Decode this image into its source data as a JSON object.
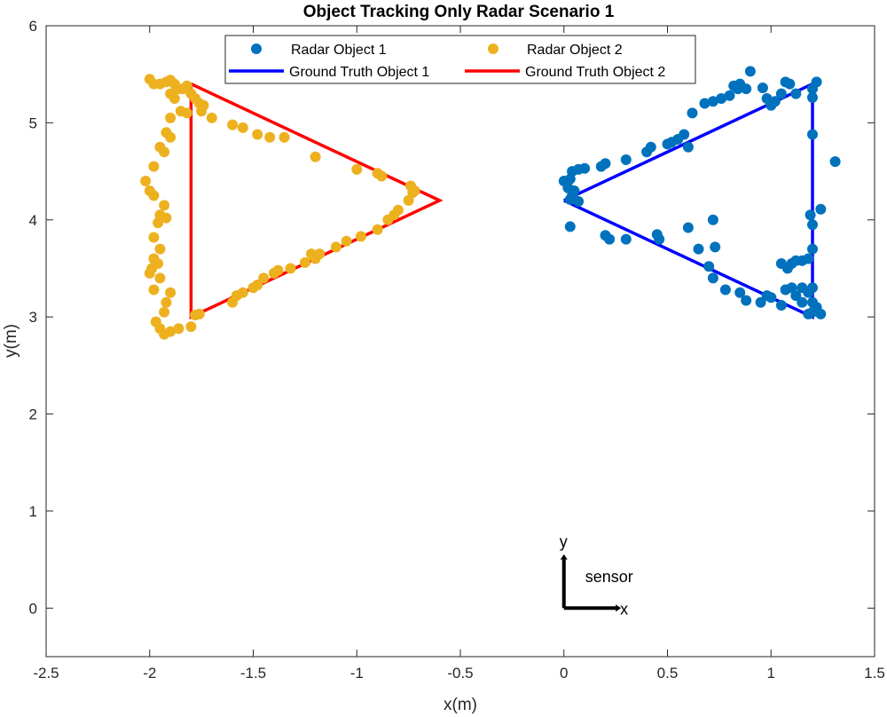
{
  "chart_data": {
    "type": "scatter",
    "title": "Object Tracking Only Radar Scenario 1",
    "xlabel": "x(m)",
    "ylabel": "y(m)",
    "xlim": [
      -2.5,
      1.5
    ],
    "ylim": [
      -0.5,
      6
    ],
    "xticks": [
      -2.5,
      -2,
      -1.5,
      -1,
      -0.5,
      0,
      0.5,
      1,
      1.5
    ],
    "xtick_labels": [
      "-2.5",
      "-2",
      "-1.5",
      "-1",
      "-0.5",
      "0",
      "0.5",
      "1",
      "1.5"
    ],
    "yticks": [
      0,
      1,
      2,
      3,
      4,
      5,
      6
    ],
    "ytick_labels": [
      "0",
      "1",
      "2",
      "3",
      "4",
      "5",
      "6"
    ],
    "grid": false,
    "legend_position": "top-center",
    "series": [
      {
        "name": "Radar Object 1",
        "kind": "scatter",
        "color": "#0072BD",
        "points": [
          [
            0.0,
            4.4
          ],
          [
            0.03,
            4.42
          ],
          [
            0.02,
            4.33
          ],
          [
            0.05,
            4.3
          ],
          [
            0.04,
            4.25
          ],
          [
            0.07,
            4.19
          ],
          [
            0.03,
            4.21
          ],
          [
            0.04,
            4.5
          ],
          [
            0.07,
            4.52
          ],
          [
            0.1,
            4.53
          ],
          [
            0.18,
            4.55
          ],
          [
            0.2,
            4.58
          ],
          [
            0.3,
            4.62
          ],
          [
            0.4,
            4.7
          ],
          [
            0.42,
            4.75
          ],
          [
            0.5,
            4.78
          ],
          [
            0.52,
            4.8
          ],
          [
            0.55,
            4.83
          ],
          [
            0.58,
            4.88
          ],
          [
            0.6,
            4.75
          ],
          [
            0.62,
            5.1
          ],
          [
            0.68,
            5.2
          ],
          [
            0.72,
            5.22
          ],
          [
            0.76,
            5.25
          ],
          [
            0.8,
            5.28
          ],
          [
            0.84,
            5.35
          ],
          [
            0.9,
            5.53
          ],
          [
            0.82,
            5.38
          ],
          [
            0.85,
            5.4
          ],
          [
            0.88,
            5.35
          ],
          [
            0.96,
            5.36
          ],
          [
            0.98,
            5.25
          ],
          [
            1.0,
            5.18
          ],
          [
            1.02,
            5.22
          ],
          [
            1.05,
            5.3
          ],
          [
            1.07,
            5.42
          ],
          [
            1.09,
            5.4
          ],
          [
            1.12,
            5.3
          ],
          [
            1.2,
            5.35
          ],
          [
            1.22,
            5.42
          ],
          [
            1.2,
            5.26
          ],
          [
            1.2,
            4.88
          ],
          [
            1.31,
            4.6
          ],
          [
            1.24,
            4.11
          ],
          [
            1.2,
            3.95
          ],
          [
            1.19,
            4.05
          ],
          [
            1.2,
            3.7
          ],
          [
            1.18,
            3.6
          ],
          [
            1.15,
            3.58
          ],
          [
            1.12,
            3.58
          ],
          [
            1.1,
            3.55
          ],
          [
            1.08,
            3.5
          ],
          [
            1.05,
            3.55
          ],
          [
            1.15,
            3.3
          ],
          [
            1.2,
            3.3
          ],
          [
            1.18,
            3.25
          ],
          [
            1.2,
            3.15
          ],
          [
            1.22,
            3.1
          ],
          [
            1.2,
            3.05
          ],
          [
            1.24,
            3.03
          ],
          [
            1.18,
            3.03
          ],
          [
            1.1,
            3.3
          ],
          [
            1.07,
            3.28
          ],
          [
            1.12,
            3.22
          ],
          [
            1.15,
            3.15
          ],
          [
            1.05,
            3.12
          ],
          [
            1.0,
            3.2
          ],
          [
            0.98,
            3.22
          ],
          [
            0.95,
            3.15
          ],
          [
            0.88,
            3.17
          ],
          [
            0.85,
            3.25
          ],
          [
            0.78,
            3.28
          ],
          [
            0.72,
            3.4
          ],
          [
            0.7,
            3.52
          ],
          [
            0.73,
            3.72
          ],
          [
            0.72,
            4.0
          ],
          [
            0.65,
            3.7
          ],
          [
            0.6,
            3.92
          ],
          [
            0.46,
            3.8
          ],
          [
            0.45,
            3.85
          ],
          [
            0.3,
            3.8
          ],
          [
            0.22,
            3.8
          ],
          [
            0.2,
            3.84
          ],
          [
            0.03,
            3.93
          ]
        ]
      },
      {
        "name": "Radar Object 2",
        "kind": "scatter",
        "color": "#EDB120",
        "points": [
          [
            -2.0,
            5.45
          ],
          [
            -1.98,
            5.4
          ],
          [
            -1.95,
            5.4
          ],
          [
            -1.92,
            5.42
          ],
          [
            -1.9,
            5.44
          ],
          [
            -1.88,
            5.4
          ],
          [
            -1.86,
            5.35
          ],
          [
            -1.84,
            5.35
          ],
          [
            -1.82,
            5.38
          ],
          [
            -1.8,
            5.3
          ],
          [
            -1.78,
            5.25
          ],
          [
            -1.76,
            5.2
          ],
          [
            -1.74,
            5.18
          ],
          [
            -1.9,
            5.3
          ],
          [
            -1.88,
            5.25
          ],
          [
            -1.85,
            5.12
          ],
          [
            -1.82,
            5.1
          ],
          [
            -1.9,
            5.05
          ],
          [
            -1.92,
            4.9
          ],
          [
            -1.9,
            4.85
          ],
          [
            -1.95,
            4.75
          ],
          [
            -1.93,
            4.7
          ],
          [
            -1.98,
            4.55
          ],
          [
            -2.02,
            4.4
          ],
          [
            -2.0,
            4.3
          ],
          [
            -1.98,
            4.25
          ],
          [
            -1.93,
            4.15
          ],
          [
            -1.95,
            4.05
          ],
          [
            -1.92,
            4.02
          ],
          [
            -1.96,
            3.97
          ],
          [
            -1.98,
            3.82
          ],
          [
            -1.95,
            3.7
          ],
          [
            -1.98,
            3.6
          ],
          [
            -1.96,
            3.55
          ],
          [
            -1.99,
            3.5
          ],
          [
            -2.0,
            3.45
          ],
          [
            -1.95,
            3.4
          ],
          [
            -1.98,
            3.28
          ],
          [
            -1.9,
            3.25
          ],
          [
            -1.92,
            3.15
          ],
          [
            -1.93,
            3.05
          ],
          [
            -1.97,
            2.95
          ],
          [
            -1.95,
            2.88
          ],
          [
            -1.93,
            2.82
          ],
          [
            -1.9,
            2.85
          ],
          [
            -1.86,
            2.88
          ],
          [
            -1.8,
            2.9
          ],
          [
            -1.78,
            3.02
          ],
          [
            -1.76,
            3.03
          ],
          [
            -1.6,
            3.15
          ],
          [
            -1.58,
            3.22
          ],
          [
            -1.55,
            3.25
          ],
          [
            -1.5,
            3.3
          ],
          [
            -1.48,
            3.33
          ],
          [
            -1.45,
            3.4
          ],
          [
            -1.4,
            3.45
          ],
          [
            -1.38,
            3.48
          ],
          [
            -1.32,
            3.5
          ],
          [
            -1.25,
            3.56
          ],
          [
            -1.2,
            3.6
          ],
          [
            -1.22,
            3.65
          ],
          [
            -1.18,
            3.65
          ],
          [
            -1.1,
            3.72
          ],
          [
            -1.05,
            3.78
          ],
          [
            -0.98,
            3.83
          ],
          [
            -0.9,
            3.9
          ],
          [
            -0.85,
            4.0
          ],
          [
            -0.82,
            4.05
          ],
          [
            -0.8,
            4.1
          ],
          [
            -0.75,
            4.2
          ],
          [
            -0.73,
            4.28
          ],
          [
            -0.74,
            4.35
          ],
          [
            -0.72,
            4.3
          ],
          [
            -0.88,
            4.45
          ],
          [
            -0.9,
            4.48
          ],
          [
            -1.0,
            4.52
          ],
          [
            -1.2,
            4.65
          ],
          [
            -1.35,
            4.85
          ],
          [
            -1.42,
            4.85
          ],
          [
            -1.48,
            4.88
          ],
          [
            -1.55,
            4.95
          ],
          [
            -1.6,
            4.98
          ],
          [
            -1.7,
            5.05
          ],
          [
            -1.75,
            5.12
          ]
        ]
      },
      {
        "name": "Ground Truth Object 1",
        "kind": "line",
        "color": "#0000FF",
        "points": [
          [
            0,
            4.2
          ],
          [
            1.2,
            5.4
          ],
          [
            1.2,
            3.0
          ],
          [
            0,
            4.2
          ]
        ]
      },
      {
        "name": "Ground Truth Object 2",
        "kind": "line",
        "color": "#FF0000",
        "points": [
          [
            -1.8,
            5.4
          ],
          [
            -0.6,
            4.2
          ],
          [
            -1.8,
            3.0
          ],
          [
            -1.8,
            5.4
          ]
        ]
      }
    ],
    "annotations": [
      {
        "type": "sensor-axes",
        "origin": [
          0,
          0
        ],
        "length": 0.25,
        "x_label": "x",
        "y_label": "y",
        "text": "sensor",
        "color": "#000000"
      }
    ]
  }
}
